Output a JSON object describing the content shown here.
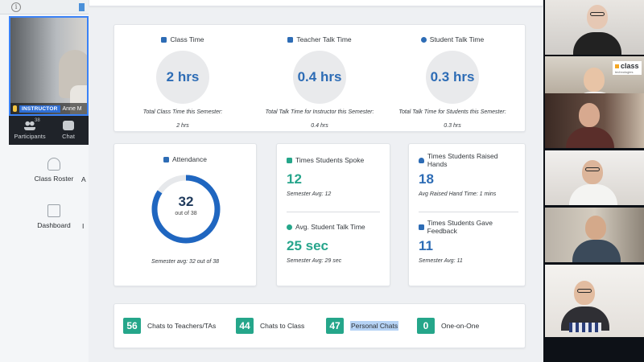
{
  "sidebar": {
    "topbar": {
      "info_glyph": "i"
    },
    "instructor_video": {
      "badge": "INSTRUCTOR",
      "name": "Anne M"
    },
    "tools": [
      {
        "label": "Participants",
        "count": "38",
        "icon": "participants-icon"
      },
      {
        "label": "Chat",
        "icon": "chat-icon"
      }
    ],
    "apps": [
      {
        "label": "Class Roster",
        "icon": "user-icon"
      },
      {
        "label": "Dashboard",
        "icon": "dashboard-icon"
      }
    ],
    "cut_letters": [
      "A",
      "I"
    ]
  },
  "dashboard": {
    "time_card": {
      "class_time": {
        "title": "Class Time",
        "value": "2 hrs",
        "caption": "Total Class Time this Semester:",
        "subvalue": "2 hrs",
        "icon_color": "#2d6cb5"
      },
      "teacher_talk": {
        "title": "Teacher Talk Time",
        "value": "0.4 hrs",
        "caption": "Total Talk Time for Instructor this Semester:",
        "subvalue": "0.4 hrs",
        "icon_color": "#2d6cb5"
      },
      "student_talk": {
        "title": "Student Talk Time",
        "value": "0.3 hrs",
        "caption": "Total Talk Time for Students this Semester:",
        "subvalue": "0.3 hrs",
        "icon_color": "#2d6cb5"
      }
    },
    "attendance": {
      "title": "Attendance",
      "present": 32,
      "total": 38,
      "value": "32",
      "out_of": "out of 38",
      "caption": "Semester avg: 32 out of 38",
      "ring_color": "#1f66c0",
      "track_color": "#e6e8eb"
    },
    "spoke": {
      "title": "Times Students Spoke",
      "value": "12",
      "caption": "Semester Avg: 12",
      "talk_title": "Avg. Student Talk Time",
      "talk_value": "25 sec",
      "talk_caption": "Semester Avg: 29 sec"
    },
    "hands": {
      "title": "Times Students Raised Hands",
      "value": "18",
      "caption": "Avg Raised Hand Time: 1 mins",
      "feedback_title": "Times Students Gave Feedback",
      "feedback_value": "11",
      "feedback_caption": "Semester Avg: 11"
    },
    "chats": [
      {
        "count": "56",
        "label": "Chats to Teachers/TAs"
      },
      {
        "count": "44",
        "label": "Chats to Class"
      },
      {
        "count": "47",
        "label": "Personal Chats",
        "selected": true
      },
      {
        "count": "0",
        "label": "One-on-One"
      }
    ],
    "accent_teal": "#25a68a",
    "accent_blue": "#2d6cb5"
  },
  "participants": {
    "logo_text": "class",
    "logo_sub": "technologies"
  }
}
